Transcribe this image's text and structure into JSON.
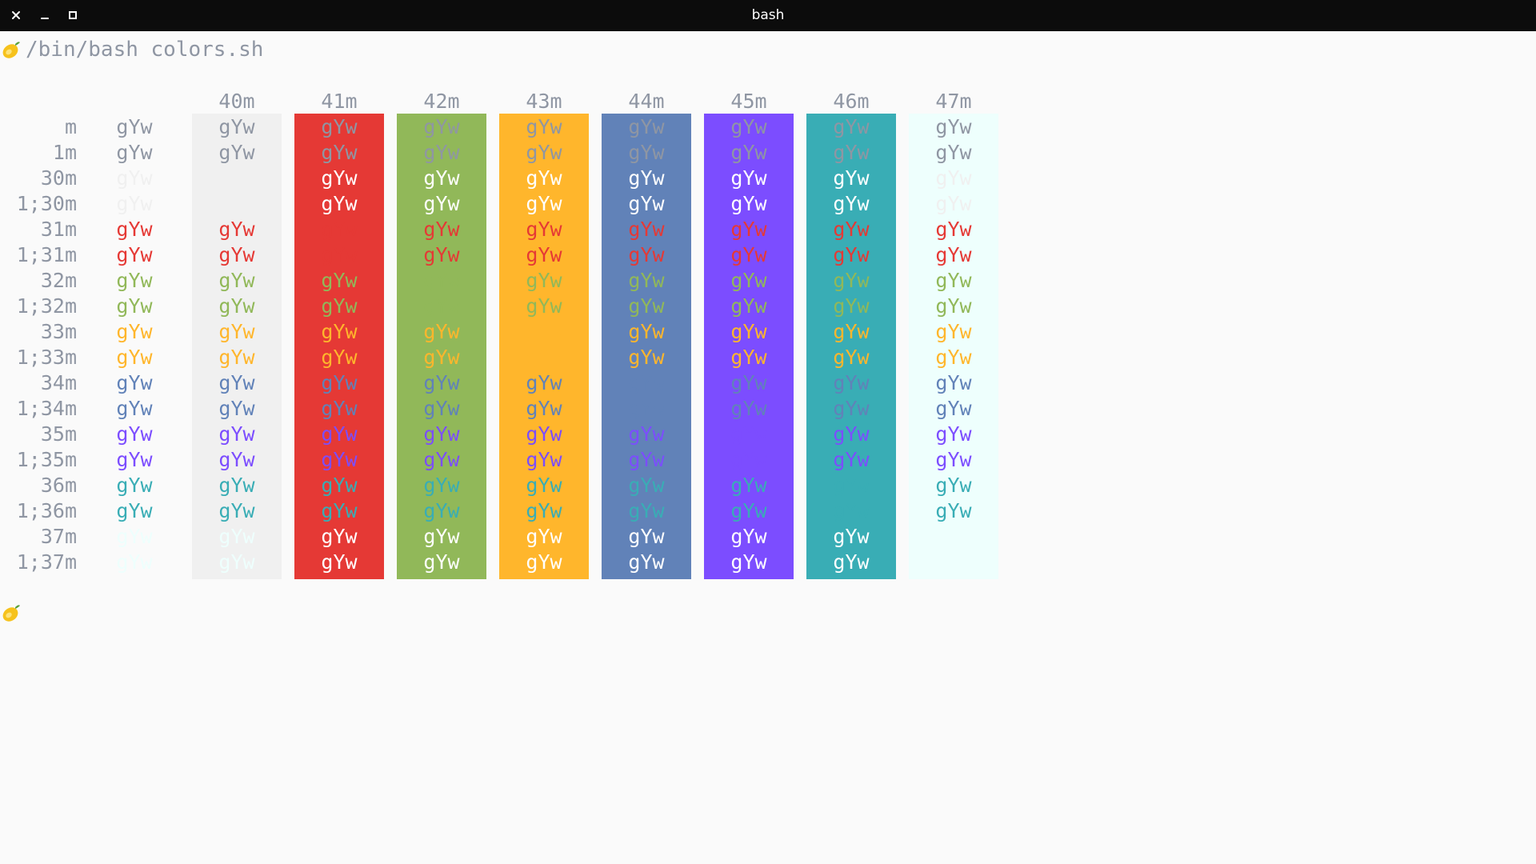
{
  "window": {
    "title": "bash",
    "controls": [
      "close",
      "minimize",
      "maximize"
    ]
  },
  "terminal": {
    "prompt_icon": "lemon-icon",
    "command": "/bin/bash colors.sh",
    "sample_text": "gYw",
    "column_headers": [
      "40m",
      "41m",
      "42m",
      "43m",
      "44m",
      "45m",
      "46m",
      "47m"
    ],
    "row_labels": [
      "m",
      "1m",
      "30m",
      "1;30m",
      "31m",
      "1;31m",
      "32m",
      "1;32m",
      "33m",
      "1;33m",
      "34m",
      "1;34m",
      "35m",
      "1;35m",
      "36m",
      "1;36m",
      "37m",
      "1;37m"
    ]
  },
  "palette": {
    "default_fg": "#8f96a3",
    "black": "#f0f0f0",
    "red": "#e53935",
    "green": "#91b859",
    "yellow": "#ffb62c",
    "blue": "#6182b8",
    "magenta": "#7c4dff",
    "cyan": "#39adb5",
    "white": "#eefffd",
    "bright_white_text": "#ffffff",
    "terminal_bg": "#fafafa",
    "titlebar_bg": "#0c0c0c"
  }
}
